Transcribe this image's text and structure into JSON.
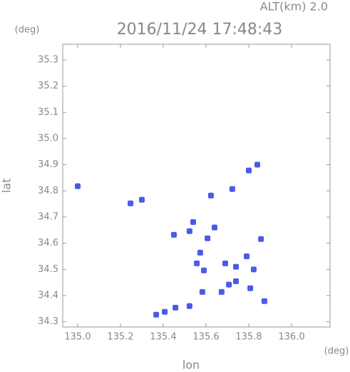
{
  "chart_data": {
    "type": "scatter",
    "title": "2016/11/24 17:48:43",
    "subtitle": "ALT(km) 2.0",
    "y_unit": "(deg)",
    "x_unit": "(deg)",
    "x_label": "lon",
    "y_label": "lat",
    "xlim": [
      134.93,
      136.18
    ],
    "ylim": [
      34.28,
      35.36
    ],
    "xticks": [
      {
        "value": 135.0,
        "label": "135.0"
      },
      135.2,
      135.4,
      135.6,
      135.8,
      {
        "value": 136.0,
        "label": "136.0"
      }
    ],
    "yticks": [
      34.3,
      34.4,
      34.5,
      34.6,
      34.7,
      34.8,
      34.9,
      {
        "value": 35.0,
        "label": "35.0"
      },
      35.1,
      35.2,
      35.3
    ],
    "color": "#4a5ae8",
    "x": [
      135.0,
      135.247,
      135.3,
      135.45,
      135.523,
      135.54,
      135.64,
      135.607,
      135.573,
      135.557,
      135.59,
      135.69,
      135.74,
      135.79,
      135.823,
      135.707,
      135.74,
      135.807,
      135.673,
      135.583,
      135.873,
      135.857,
      135.8,
      135.407,
      135.457,
      135.523,
      135.367,
      135.623,
      135.723,
      135.84
    ],
    "y": [
      34.818,
      34.752,
      34.766,
      34.632,
      34.646,
      34.681,
      34.66,
      34.619,
      34.564,
      34.523,
      34.496,
      34.523,
      34.51,
      34.55,
      34.5,
      34.442,
      34.455,
      34.428,
      34.414,
      34.414,
      34.379,
      34.616,
      34.878,
      34.338,
      34.354,
      34.36,
      34.327,
      34.782,
      34.807,
      34.9
    ]
  }
}
